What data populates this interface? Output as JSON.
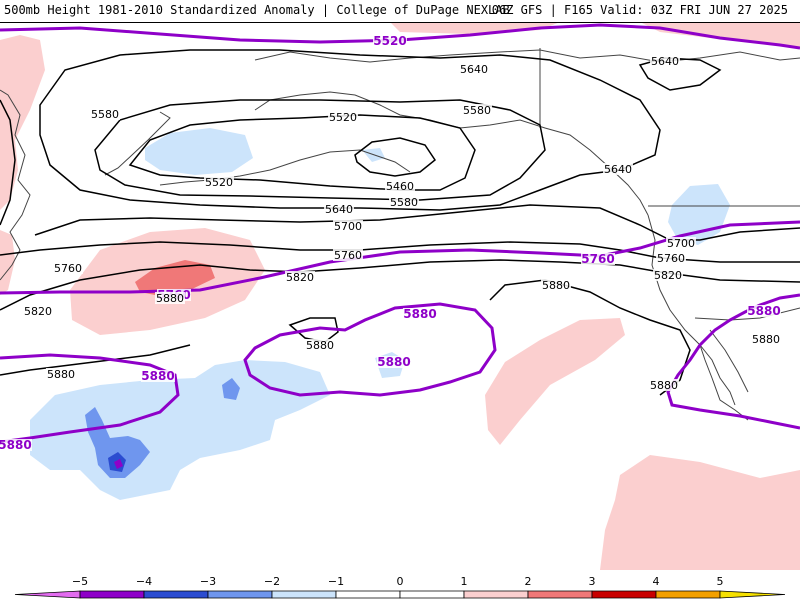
{
  "header": {
    "title_left": "500mb Height 1981-2010 Standardized Anomaly | College of DuPage NEXLAB",
    "title_right": "06Z GFS | F165 Valid: 03Z FRI JUN 27 2025"
  },
  "colors": {
    "height_contour": "#000000",
    "highlight_contour": "#8e00c8",
    "land_border": "#444444",
    "anomaly_neg_1": "#cce4fb",
    "anomaly_neg_2": "#6f96ee",
    "anomaly_neg_3": "#2b4cd0",
    "anomaly_neg_4": "#8e00c8",
    "anomaly_pos_1": "#fbcfcf",
    "anomaly_pos_2": "#f07878"
  },
  "contour_labels": [
    {
      "id": "c5520a",
      "text": "5520",
      "kind": "purple"
    },
    {
      "id": "c5640a",
      "text": "5640",
      "kind": "black"
    },
    {
      "id": "c5640b",
      "text": "5640",
      "kind": "black"
    },
    {
      "id": "c5580a",
      "text": "5580",
      "kind": "black"
    },
    {
      "id": "c5520b",
      "text": "5520",
      "kind": "black"
    },
    {
      "id": "c5580b",
      "text": "5580",
      "kind": "black"
    },
    {
      "id": "c5520c",
      "text": "5520",
      "kind": "black"
    },
    {
      "id": "c5460",
      "text": "5460",
      "kind": "black"
    },
    {
      "id": "c5580c",
      "text": "5580",
      "kind": "black"
    },
    {
      "id": "c5640c",
      "text": "5640",
      "kind": "black"
    },
    {
      "id": "c5640d",
      "text": "5640",
      "kind": "black"
    },
    {
      "id": "c5700a",
      "text": "5700",
      "kind": "black"
    },
    {
      "id": "c5700b",
      "text": "5700",
      "kind": "black"
    },
    {
      "id": "c5760a",
      "text": "5760",
      "kind": "black"
    },
    {
      "id": "c5760b",
      "text": "5760",
      "kind": "black"
    },
    {
      "id": "c5760c",
      "text": "5760",
      "kind": "purple"
    },
    {
      "id": "c5760d",
      "text": "5760",
      "kind": "black"
    },
    {
      "id": "c5760e",
      "text": "5760",
      "kind": "purple"
    },
    {
      "id": "c5820a",
      "text": "5820",
      "kind": "black"
    },
    {
      "id": "c5820b",
      "text": "5820",
      "kind": "black"
    },
    {
      "id": "c5820c",
      "text": "5820",
      "kind": "black"
    },
    {
      "id": "c5880a",
      "text": "5880",
      "kind": "black"
    },
    {
      "id": "c5880b",
      "text": "5880",
      "kind": "black"
    },
    {
      "id": "c5880c",
      "text": "5880",
      "kind": "purple"
    },
    {
      "id": "c5880d",
      "text": "5880",
      "kind": "black"
    },
    {
      "id": "c5880e",
      "text": "5880",
      "kind": "black"
    },
    {
      "id": "c5880f",
      "text": "5880",
      "kind": "purple"
    },
    {
      "id": "c5880g",
      "text": "5880",
      "kind": "purple"
    },
    {
      "id": "c5880h",
      "text": "5880",
      "kind": "purple"
    },
    {
      "id": "c5880i",
      "text": "5880",
      "kind": "black"
    },
    {
      "id": "c5880j",
      "text": "5880",
      "kind": "black"
    },
    {
      "id": "c5880k",
      "text": "5880",
      "kind": "purple"
    }
  ],
  "colorbar": {
    "ticks": [
      "−5",
      "−4",
      "−3",
      "−2",
      "−1",
      "0",
      "1",
      "2",
      "3",
      "4",
      "5"
    ],
    "segments": [
      {
        "color": "#e36cf0"
      },
      {
        "color": "#8e00c8"
      },
      {
        "color": "#2b4cd0"
      },
      {
        "color": "#6f96ee"
      },
      {
        "color": "#cce4fb"
      },
      {
        "color": "#ffffff"
      },
      {
        "color": "#ffffff"
      },
      {
        "color": "#fbcfcf"
      },
      {
        "color": "#f07878"
      },
      {
        "color": "#c80000"
      },
      {
        "color": "#f3a000"
      },
      {
        "color": "#f5e000"
      }
    ]
  }
}
